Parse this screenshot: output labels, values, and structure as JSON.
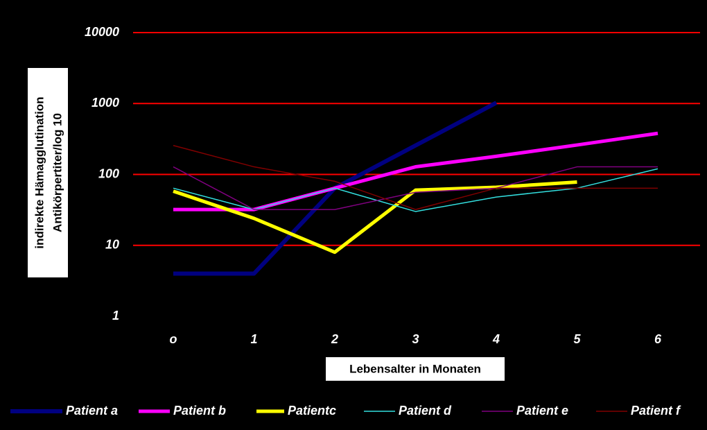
{
  "chart_data": {
    "type": "line",
    "ylabel": [
      "indirekte Hämagglutination",
      "Antikörpertiter/log 10"
    ],
    "xlabel": "Lebensalter in Monaten",
    "categories": [
      "o",
      "1",
      "2",
      "3",
      "4",
      "5",
      "6"
    ],
    "log_scale_y": true,
    "ylim": [
      1,
      10000
    ],
    "yticks": [
      1,
      10,
      100,
      1000,
      10000
    ],
    "grid": true,
    "grid_color": "#ff0000",
    "background": "#000000",
    "legend": "bottom",
    "series": [
      {
        "name": "Patient a",
        "color": "#000080",
        "width": 6,
        "values": [
          4,
          4,
          64,
          256,
          1024,
          null,
          null
        ]
      },
      {
        "name": "Patient b",
        "color": "#ff00ff",
        "width": 5,
        "values": [
          32,
          32,
          64,
          128,
          180,
          260,
          380
        ]
      },
      {
        "name": "Patientc",
        "color": "#ffff00",
        "width": 5,
        "values": [
          58,
          24,
          8,
          60,
          66,
          78,
          null
        ]
      },
      {
        "name": "Patient d",
        "color": "#33e0e0",
        "width": 1.5,
        "values": [
          64,
          32,
          64,
          30,
          48,
          64,
          120
        ]
      },
      {
        "name": "Patient e",
        "color": "#800080",
        "width": 1.5,
        "values": [
          128,
          32,
          32,
          56,
          64,
          128,
          128
        ]
      },
      {
        "name": "Patient f",
        "color": "#800000",
        "width": 1.5,
        "values": [
          256,
          128,
          80,
          32,
          64,
          64,
          64
        ]
      }
    ]
  }
}
